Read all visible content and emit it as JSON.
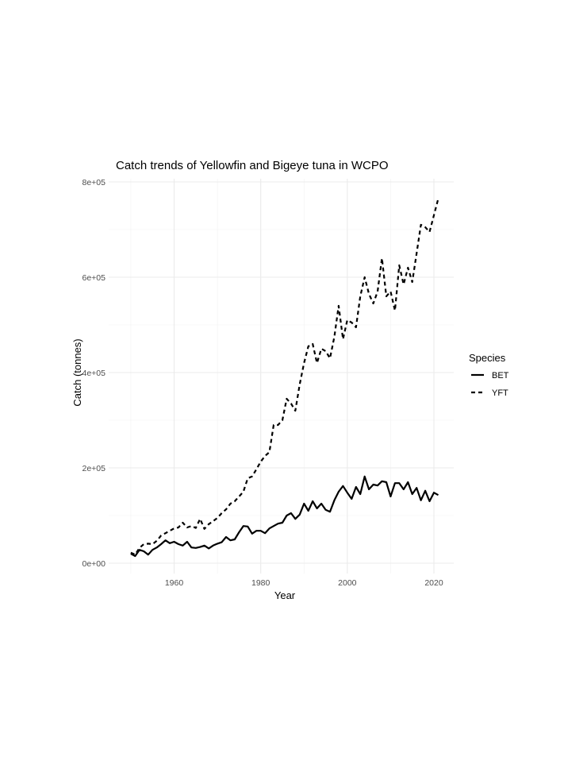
{
  "chart_data": {
    "type": "line",
    "title": "Catch trends of Yellowfin and Bigeye tuna in WCPO",
    "xlabel": "Year",
    "ylabel": "Catch (tonnes)",
    "xlim": [
      1947,
      2024
    ],
    "ylim": [
      0,
      800000
    ],
    "x_ticks": [
      1960,
      1980,
      2000,
      2020
    ],
    "x_tick_labels": [
      "1960",
      "1980",
      "2000",
      "2020"
    ],
    "y_ticks": [
      0,
      200000,
      400000,
      600000,
      800000
    ],
    "y_tick_labels": [
      "0e+00",
      "2e+05",
      "4e+05",
      "6e+05",
      "8e+05"
    ],
    "grid": true,
    "legend": {
      "title": "Species",
      "position": "right",
      "entries": [
        "BET",
        "YFT"
      ]
    },
    "x": [
      1950,
      1951,
      1952,
      1953,
      1954,
      1955,
      1956,
      1957,
      1958,
      1959,
      1960,
      1961,
      1962,
      1963,
      1964,
      1965,
      1966,
      1967,
      1968,
      1969,
      1970,
      1971,
      1972,
      1973,
      1974,
      1975,
      1976,
      1977,
      1978,
      1979,
      1980,
      1981,
      1982,
      1983,
      1984,
      1985,
      1986,
      1987,
      1988,
      1989,
      1990,
      1991,
      1992,
      1993,
      1994,
      1995,
      1996,
      1997,
      1998,
      1999,
      2000,
      2001,
      2002,
      2003,
      2004,
      2005,
      2006,
      2007,
      2008,
      2009,
      2010,
      2011,
      2012,
      2013,
      2014,
      2015,
      2016,
      2017,
      2018,
      2019,
      2020,
      2021
    ],
    "series": [
      {
        "name": "BET",
        "linetype": "solid",
        "values": [
          20000,
          15000,
          28000,
          25000,
          18000,
          28000,
          33000,
          40000,
          48000,
          42000,
          45000,
          40000,
          37000,
          45000,
          33000,
          32000,
          34000,
          37000,
          31000,
          37000,
          41000,
          44000,
          55000,
          48000,
          50000,
          65000,
          78000,
          77000,
          62000,
          68000,
          68000,
          63000,
          73000,
          78000,
          83000,
          85000,
          100000,
          105000,
          93000,
          102000,
          125000,
          110000,
          130000,
          115000,
          125000,
          112000,
          108000,
          132000,
          150000,
          162000,
          148000,
          135000,
          160000,
          145000,
          182000,
          155000,
          165000,
          163000,
          172000,
          170000,
          140000,
          168000,
          168000,
          155000,
          170000,
          145000,
          158000,
          132000,
          152000,
          130000,
          148000,
          143000
        ]
      },
      {
        "name": "YFT",
        "linetype": "dashed",
        "values": [
          22000,
          18000,
          32000,
          40000,
          41000,
          40000,
          47000,
          58000,
          63000,
          68000,
          73000,
          75000,
          85000,
          75000,
          78000,
          74000,
          93000,
          72000,
          82000,
          88000,
          95000,
          105000,
          113000,
          125000,
          130000,
          140000,
          150000,
          178000,
          182000,
          197000,
          213000,
          225000,
          233000,
          290000,
          290000,
          300000,
          345000,
          335000,
          320000,
          375000,
          420000,
          455000,
          460000,
          420000,
          450000,
          445000,
          430000,
          475000,
          540000,
          470000,
          510000,
          505000,
          495000,
          560000,
          600000,
          565000,
          545000,
          570000,
          640000,
          560000,
          570000,
          530000,
          625000,
          585000,
          620000,
          590000,
          650000,
          710000,
          705000,
          695000,
          730000,
          765000
        ]
      }
    ]
  }
}
